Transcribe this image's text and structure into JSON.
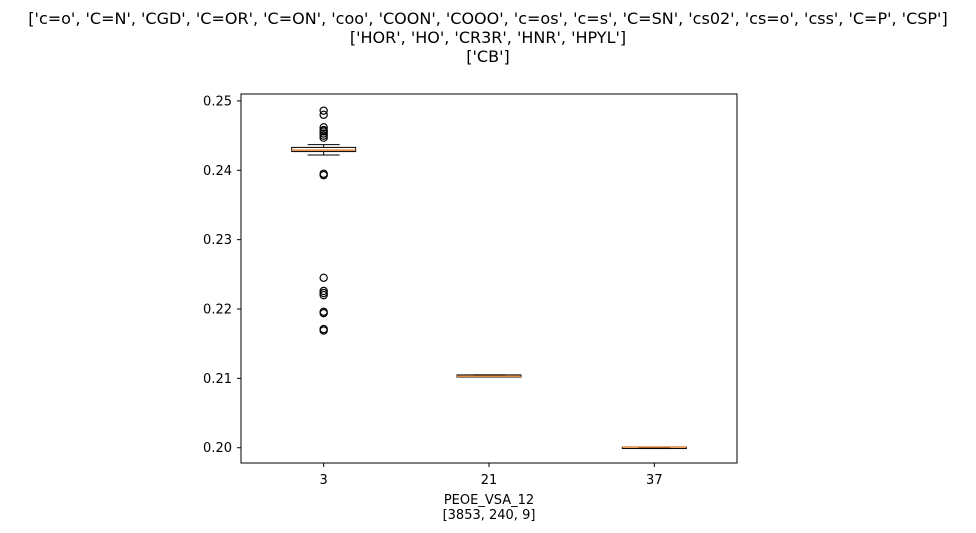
{
  "chart_data": {
    "type": "box",
    "title_lines": [
      "['c=o', 'C=N', 'CGD', 'C=OR', 'C=ON', 'coo', 'COON', 'COOO', 'c=os', 'c=s', 'C=SN', 'cs02', 'cs=o', 'css', 'C=P', 'CSP']",
      "['HOR', 'HO', 'CR3R', 'HNR', 'HPYL']",
      "['CB']"
    ],
    "xlabel_lines": [
      "PEOE_VSA_12",
      "[3853, 240, 9]"
    ],
    "ylabel": "",
    "ylim": [
      0.1978,
      0.251
    ],
    "yticks": [
      0.2,
      0.21,
      0.22,
      0.23,
      0.24,
      0.25
    ],
    "ytick_labels": [
      "0.20",
      "0.21",
      "0.22",
      "0.23",
      "0.24",
      "0.25"
    ],
    "categories": [
      "3",
      "21",
      "37"
    ],
    "boxes": [
      {
        "label": "3",
        "whisker_low": 0.2422,
        "q1": 0.2427,
        "median": 0.2429,
        "q3": 0.2433,
        "whisker_high": 0.2437,
        "fliers": [
          0.2486,
          0.248,
          0.2462,
          0.2458,
          0.2456,
          0.2453,
          0.245,
          0.2447,
          0.2395,
          0.2393,
          0.2245,
          0.2226,
          0.2223,
          0.222,
          0.2196,
          0.2194,
          0.2171,
          0.2169
        ]
      },
      {
        "label": "21",
        "whisker_low": 0.2102,
        "q1": 0.2102,
        "median": 0.2103,
        "q3": 0.2105,
        "whisker_high": 0.2105,
        "fliers": []
      },
      {
        "label": "37",
        "whisker_low": 0.2,
        "q1": 0.2,
        "median": 0.2001,
        "q3": 0.2001,
        "whisker_high": 0.2001,
        "fliers": []
      }
    ],
    "colors": {
      "median": "#e8883a",
      "box": "#000000",
      "flier": "#000000"
    },
    "grid": false
  }
}
